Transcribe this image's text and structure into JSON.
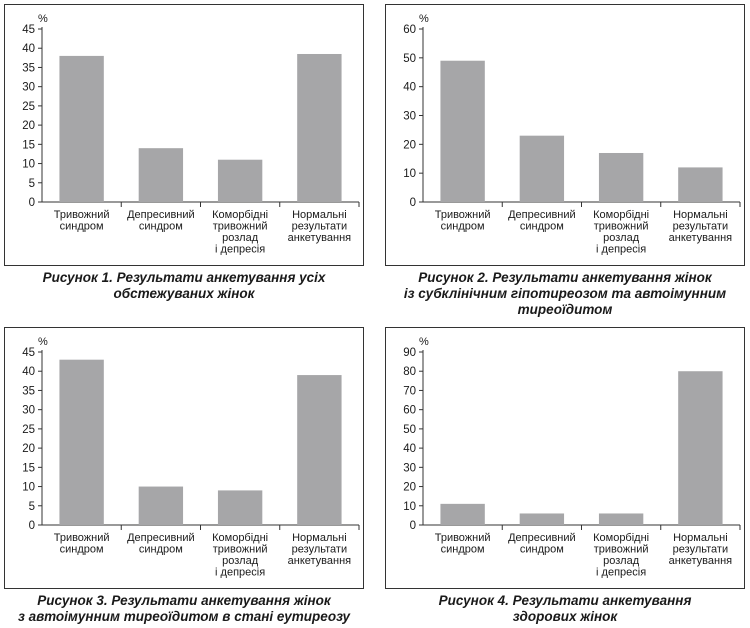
{
  "unit_label": "%",
  "categories": [
    [
      "Тривожний",
      "синдром"
    ],
    [
      "Депресивний",
      "синдром"
    ],
    [
      "Коморбідні",
      "тривожний",
      "розлад",
      "і депресія"
    ],
    [
      "Нормальні",
      "результати",
      "анкетування"
    ]
  ],
  "colors": {
    "bar": "#a6a6a8",
    "axis": "#333333"
  },
  "captions": [
    [
      "Рисунок 1.  Результати анкетування усіх",
      "обстежуваних жінок"
    ],
    [
      "Рисунок 2.  Результати анкетування жінок",
      "із субклінічним гіпотиреозом та автоімунним",
      "тиреоїдитом"
    ],
    [
      "Рисунок 3.  Результати анкетування жінок",
      "з автоімунним тиреоїдитом в стані еутиреозу"
    ],
    [
      "Рисунок 4.  Результати анкетування",
      "здорових жінок"
    ]
  ],
  "chart_data": [
    {
      "type": "bar",
      "ylabel": "%",
      "ylim": [
        0,
        45
      ],
      "yticks": [
        0,
        5,
        10,
        15,
        20,
        25,
        30,
        35,
        40,
        45
      ],
      "categories": [
        "Тривожний синдром",
        "Депресивний синдром",
        "Коморбідні тривожний розлад і депресія",
        "Нормальні результати анкетування"
      ],
      "values": [
        38,
        14,
        11,
        38.5
      ]
    },
    {
      "type": "bar",
      "ylabel": "%",
      "ylim": [
        0,
        60
      ],
      "yticks": [
        0,
        10,
        20,
        30,
        40,
        50,
        60
      ],
      "categories": [
        "Тривожний синдром",
        "Депресивний синдром",
        "Коморбідні тривожний розлад і депресія",
        "Нормальні результати анкетування"
      ],
      "values": [
        49,
        23,
        17,
        12
      ]
    },
    {
      "type": "bar",
      "ylabel": "%",
      "ylim": [
        0,
        45
      ],
      "yticks": [
        0,
        5,
        10,
        15,
        20,
        25,
        30,
        35,
        40,
        45
      ],
      "categories": [
        "Тривожний синдром",
        "Депресивний синдром",
        "Коморбідні тривожний розлад і депресія",
        "Нормальні результати анкетування"
      ],
      "values": [
        43,
        10,
        9,
        39
      ]
    },
    {
      "type": "bar",
      "ylabel": "%",
      "ylim": [
        0,
        90
      ],
      "yticks": [
        0,
        10,
        20,
        30,
        40,
        50,
        60,
        70,
        80,
        90
      ],
      "categories": [
        "Тривожний синдром",
        "Депресивний синдром",
        "Коморбідні тривожний розлад і депресія",
        "Нормальні результати анкетування"
      ],
      "values": [
        11,
        6,
        6,
        80
      ]
    }
  ]
}
